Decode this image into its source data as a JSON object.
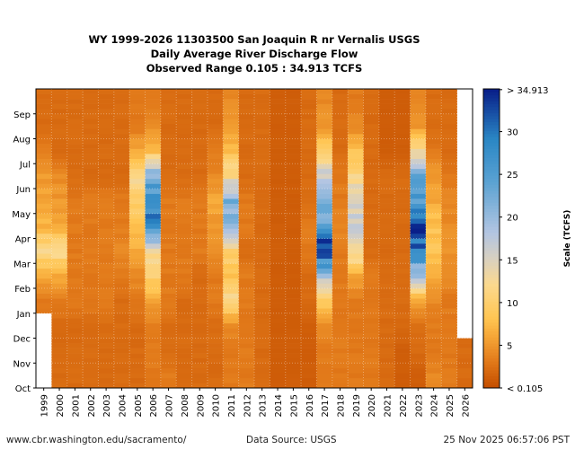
{
  "chart_data": {
    "type": "heatmap",
    "title": "WY 1999-2026 11303500 San Joaquin R nr Vernalis USGS",
    "subtitle": "Daily Average River Discharge Flow",
    "range_text": "Observed Range 0.105 : 34.913 TCFS",
    "x_categories": [
      "1999",
      "2000",
      "2001",
      "2002",
      "2003",
      "2004",
      "2005",
      "2006",
      "2007",
      "2008",
      "2009",
      "2010",
      "2011",
      "2012",
      "2013",
      "2014",
      "2015",
      "2016",
      "2017",
      "2018",
      "2019",
      "2020",
      "2021",
      "2022",
      "2023",
      "2024",
      "2025",
      "2026"
    ],
    "y_categories": [
      "Oct",
      "Nov",
      "Dec",
      "Jan",
      "Feb",
      "Mar",
      "Apr",
      "May",
      "Jun",
      "Jul",
      "Aug",
      "Sep"
    ],
    "values_note_units": "TCFS",
    "values": [
      [
        null,
        null,
        null,
        3,
        6,
        12,
        7,
        6,
        5,
        3,
        2,
        2
      ],
      [
        2,
        2,
        2,
        3,
        6,
        12,
        6,
        5,
        4,
        2,
        2,
        2
      ],
      [
        2,
        2,
        2,
        3,
        3,
        3,
        3,
        3,
        2,
        2,
        2,
        2
      ],
      [
        2,
        2,
        2,
        3,
        3,
        3,
        3,
        3,
        2,
        2,
        2,
        2
      ],
      [
        2,
        2,
        2,
        3,
        3,
        3,
        3,
        3,
        2,
        2,
        2,
        2
      ],
      [
        2,
        2,
        2,
        2,
        3,
        4,
        3,
        3,
        2,
        2,
        2,
        2
      ],
      [
        2,
        2,
        2,
        3,
        4,
        6,
        8,
        10,
        12,
        6,
        3,
        3
      ],
      [
        3,
        3,
        3,
        6,
        10,
        12,
        30,
        28,
        22,
        8,
        4,
        3
      ],
      [
        3,
        2,
        2,
        3,
        3,
        3,
        3,
        3,
        2,
        2,
        2,
        2
      ],
      [
        2,
        2,
        2,
        2,
        3,
        3,
        3,
        3,
        2,
        2,
        2,
        2
      ],
      [
        2,
        2,
        2,
        2,
        2,
        3,
        3,
        3,
        2,
        2,
        2,
        2
      ],
      [
        2,
        2,
        2,
        3,
        3,
        4,
        5,
        6,
        4,
        3,
        2,
        2
      ],
      [
        3,
        3,
        4,
        12,
        8,
        10,
        20,
        22,
        12,
        8,
        5,
        4
      ],
      [
        3,
        3,
        3,
        3,
        3,
        2,
        3,
        3,
        2,
        2,
        2,
        2
      ],
      [
        2,
        2,
        2,
        2,
        2,
        2,
        2,
        2,
        2,
        2,
        2,
        2
      ],
      [
        1,
        1,
        1,
        1,
        1,
        1,
        1,
        1,
        1,
        1,
        1,
        1
      ],
      [
        1,
        1,
        1,
        1,
        1,
        1,
        1,
        1,
        1,
        1,
        1,
        1
      ],
      [
        1,
        1,
        1,
        2,
        2,
        3,
        3,
        2,
        2,
        2,
        2,
        2
      ],
      [
        3,
        3,
        4,
        10,
        18,
        34,
        25,
        20,
        16,
        10,
        5,
        4
      ],
      [
        3,
        3,
        3,
        3,
        3,
        3,
        4,
        3,
        3,
        2,
        2,
        2
      ],
      [
        3,
        3,
        3,
        3,
        6,
        14,
        16,
        14,
        12,
        8,
        4,
        3
      ],
      [
        3,
        3,
        3,
        3,
        3,
        2,
        2,
        2,
        2,
        2,
        2,
        2
      ],
      [
        2,
        2,
        2,
        2,
        2,
        2,
        2,
        2,
        2,
        1,
        1,
        1
      ],
      [
        1,
        1,
        2,
        2,
        2,
        2,
        2,
        2,
        2,
        1,
        1,
        1
      ],
      [
        1,
        2,
        2,
        6,
        18,
        30,
        33,
        26,
        22,
        12,
        5,
        4
      ],
      [
        4,
        3,
        3,
        4,
        6,
        8,
        8,
        6,
        5,
        3,
        2,
        2
      ],
      [
        3,
        3,
        3,
        3,
        4,
        5,
        4,
        4,
        3,
        2,
        2,
        2
      ],
      [
        2,
        2,
        null,
        null,
        null,
        null,
        null,
        null,
        null,
        null,
        null,
        null
      ]
    ],
    "colorbar": {
      "label": "Scale (TCFS)",
      "range": [
        0.105,
        34.913
      ],
      "ticks": [
        {
          "value": 34.913,
          "label": "> 34.913"
        },
        {
          "value": 30,
          "label": "30"
        },
        {
          "value": 25,
          "label": "25"
        },
        {
          "value": 20,
          "label": "20"
        },
        {
          "value": 15,
          "label": "15"
        },
        {
          "value": 10,
          "label": "10"
        },
        {
          "value": 5,
          "label": "5"
        },
        {
          "value": 0,
          "label": "< 0.105"
        }
      ],
      "colors": [
        {
          "v": 0,
          "c": "#c54f00"
        },
        {
          "v": 3,
          "c": "#e27a1a"
        },
        {
          "v": 6,
          "c": "#f6a838"
        },
        {
          "v": 8,
          "c": "#ffc552"
        },
        {
          "v": 12,
          "c": "#fbd98f"
        },
        {
          "v": 15,
          "c": "#d8d0c0"
        },
        {
          "v": 18,
          "c": "#b3c5e2"
        },
        {
          "v": 24,
          "c": "#5aa2d2"
        },
        {
          "v": 29,
          "c": "#2a86c4"
        },
        {
          "v": 35,
          "c": "#071a86"
        }
      ]
    },
    "grid": true
  },
  "footer": {
    "url": "www.cbr.washington.edu/sacramento/",
    "source": "Data Source: USGS",
    "timestamp": "25 Nov 2025 06:57:06 PST"
  }
}
